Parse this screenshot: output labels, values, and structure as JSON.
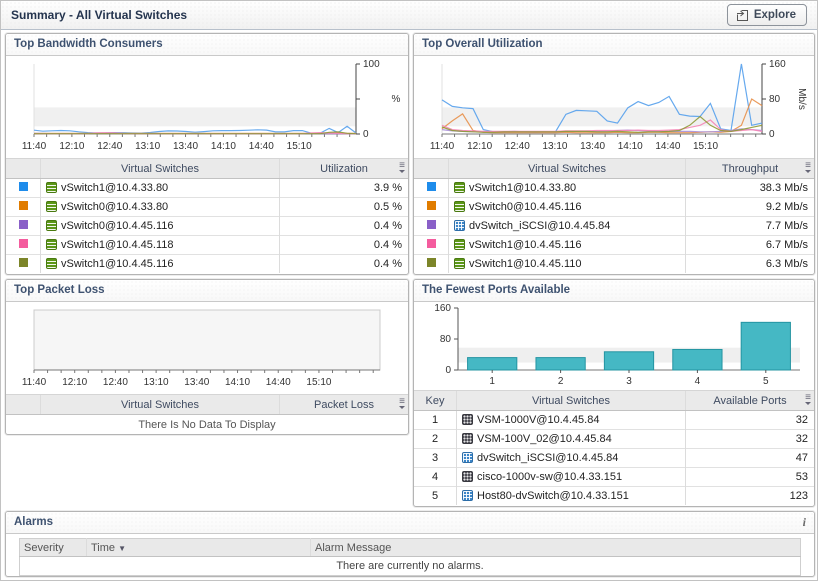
{
  "header": {
    "title": "Summary - All Virtual Switches",
    "explore_label": "Explore"
  },
  "panels": {
    "bandwidth": {
      "title": "Top Bandwidth Consumers",
      "table": {
        "col_name": "Virtual Switches",
        "col_value": "Utilization",
        "rows": [
          {
            "color": "#1e8ceb",
            "icon": "vswitch",
            "name": "vSwitch1@10.4.33.80",
            "value": "3.9 %"
          },
          {
            "color": "#e07c00",
            "icon": "vswitch",
            "name": "vSwitch0@10.4.33.80",
            "value": "0.5 %"
          },
          {
            "color": "#8a60c8",
            "icon": "vswitch",
            "name": "vSwitch0@10.4.45.116",
            "value": "0.4 %"
          },
          {
            "color": "#f45c9e",
            "icon": "vswitch",
            "name": "vSwitch1@10.4.45.118",
            "value": "0.4 %"
          },
          {
            "color": "#7c8529",
            "icon": "vswitch",
            "name": "vSwitch1@10.4.45.116",
            "value": "0.4 %"
          }
        ]
      },
      "chart_data": {
        "type": "line",
        "unit": "%",
        "unit_rotated": false,
        "x_labels": [
          "11:40",
          "12:10",
          "12:40",
          "13:10",
          "13:40",
          "14:10",
          "14:40",
          "15:10"
        ],
        "x_range_minutes": 255,
        "label_step_minutes": 30,
        "ylim": [
          0,
          100
        ],
        "yticks": [
          {
            "value": 100,
            "label": "100"
          },
          {
            "value": 50,
            "label": ""
          },
          {
            "value": 0,
            "label": "0"
          }
        ],
        "series": [
          {
            "name": "vSwitch1@10.4.33.80",
            "color": "#55a0ec",
            "values": [
              5.5,
              4,
              4.5,
              5,
              4.6,
              3.2,
              2,
              1.5,
              1.6,
              2,
              1.8,
              1.4,
              1.3,
              2.2,
              3.6,
              4.4,
              4.3,
              3.5,
              2.6,
              3.4,
              4.6,
              4.8,
              4.8,
              5,
              5.4,
              6,
              5.6,
              3,
              3,
              4.8,
              4.8,
              1.2,
              1.2,
              8,
              2,
              11,
              1.5
            ]
          },
          {
            "name": "vSwitch0@10.4.33.80",
            "color": "#e8904a",
            "values": [
              1,
              0.9,
              0.8,
              0.8,
              0.8,
              0.8,
              0.8,
              0.8,
              0.8,
              0.8,
              0.8,
              0.8,
              0.8,
              0.8,
              0.8,
              0.8,
              0.8,
              0.8,
              0.8,
              0.8,
              0.8,
              0.8,
              0.8,
              0.8,
              0.8,
              0.8,
              0.8,
              0.8,
              0.8,
              0.8,
              0.8,
              0.8,
              0.8,
              1,
              1.5,
              1,
              0.8
            ]
          },
          {
            "name": "vSwitch0@10.4.45.116",
            "color": "#a98fd8",
            "values": [
              0.8,
              0.7,
              0.6,
              0.6,
              0.6,
              0.6,
              0.6,
              0.6,
              0.6,
              0.6,
              0.6,
              0.6,
              0.6,
              0.6,
              0.6,
              0.6,
              0.6,
              0.6,
              0.6,
              0.6,
              0.6,
              0.6,
              0.6,
              0.6,
              0.6,
              0.6,
              0.6,
              0.6,
              0.6,
              0.6,
              0.6,
              0.6,
              0.6,
              0.6,
              0.6,
              0.6,
              0.6
            ]
          },
          {
            "name": "vSwitch1@10.4.45.118",
            "color": "#f585b6",
            "values": [
              0.6,
              0.6,
              0.6,
              0.6,
              0.6,
              0.6,
              0.6,
              1.6,
              1.8,
              1.6,
              0.7,
              0.6,
              0.6,
              0.6,
              0.6,
              0.6,
              0.6,
              0.6,
              0.6,
              0.6,
              0.6,
              0.6,
              0.6,
              0.6,
              0.6,
              0.6,
              0.6,
              0.6,
              0.6,
              0.6,
              0.6,
              1.5,
              2,
              1.5,
              0.8,
              0.6,
              0.6
            ]
          },
          {
            "name": "vSwitch1@10.4.45.116",
            "color": "#8e9a36",
            "values": [
              0.5,
              0.5,
              0.5,
              0.5,
              0.5,
              0.5,
              0.5,
              0.5,
              0.5,
              0.5,
              0.5,
              0.5,
              0.5,
              0.5,
              0.5,
              0.5,
              0.5,
              0.5,
              0.5,
              0.5,
              0.5,
              0.5,
              0.5,
              0.5,
              0.5,
              0.5,
              0.5,
              0.5,
              0.5,
              0.5,
              0.5,
              0.5,
              0.5,
              2.5,
              3,
              1,
              0.5
            ]
          }
        ]
      }
    },
    "utilization": {
      "title": "Top Overall Utilization",
      "table": {
        "col_name": "Virtual Switches",
        "col_value": "Throughput",
        "rows": [
          {
            "color": "#1e8ceb",
            "icon": "vswitch",
            "name": "vSwitch1@10.4.33.80",
            "value": "38.3 Mb/s"
          },
          {
            "color": "#e07c00",
            "icon": "vswitch",
            "name": "vSwitch0@10.4.45.116",
            "value": "9.2 Mb/s"
          },
          {
            "color": "#8a60c8",
            "icon": "dvswitch",
            "name": "dvSwitch_iSCSI@10.4.45.84",
            "value": "7.7 Mb/s"
          },
          {
            "color": "#f45c9e",
            "icon": "vswitch",
            "name": "vSwitch1@10.4.45.116",
            "value": "6.7 Mb/s"
          },
          {
            "color": "#7c8529",
            "icon": "vswitch",
            "name": "vSwitch1@10.4.45.110",
            "value": "6.3 Mb/s"
          }
        ]
      },
      "chart_data": {
        "type": "line",
        "unit": "Mb/s",
        "unit_rotated": true,
        "x_labels": [
          "11:40",
          "12:10",
          "12:40",
          "13:10",
          "13:40",
          "14:10",
          "14:40",
          "15:10"
        ],
        "x_range_minutes": 255,
        "label_step_minutes": 30,
        "ylim": [
          0,
          160
        ],
        "yticks": [
          {
            "value": 160,
            "label": "160"
          },
          {
            "value": 80,
            "label": "80"
          },
          {
            "value": 0,
            "label": "0"
          }
        ],
        "series": [
          {
            "name": "vSwitch1@10.4.33.80",
            "color": "#55a0ec",
            "values": [
              78,
              63,
              60,
              58,
              10,
              5,
              4,
              5,
              5,
              4,
              5,
              5,
              45,
              54,
              53,
              52,
              30,
              25,
              60,
              74,
              65,
              72,
              86,
              45,
              41,
              40,
              70,
              12,
              8,
              160,
              20,
              25
            ]
          },
          {
            "name": "vSwitch0@10.4.45.116",
            "color": "#e8904a",
            "values": [
              12,
              30,
              46,
              8,
              4,
              3,
              3,
              3,
              3,
              3,
              3,
              3,
              4,
              3,
              3,
              3,
              3,
              4,
              3,
              3,
              4,
              4,
              3,
              3,
              3,
              4,
              5,
              4,
              6,
              20,
              80,
              65
            ]
          },
          {
            "name": "dvSwitch_iSCSI@10.4.45.84",
            "color": "#a98fd8",
            "values": [
              10,
              7,
              6,
              5,
              5,
              5,
              5,
              6,
              5,
              5,
              5,
              5,
              6,
              6,
              6,
              6,
              7,
              8,
              9,
              8,
              7,
              6,
              6,
              6,
              6,
              5,
              5,
              6,
              8,
              12,
              10,
              8
            ]
          },
          {
            "name": "vSwitch1@10.4.45.116",
            "color": "#f585b6",
            "values": [
              20,
              10,
              8,
              7,
              6,
              6,
              6,
              6,
              6,
              6,
              6,
              6,
              7,
              7,
              7,
              8,
              8,
              8,
              8,
              9,
              8,
              8,
              9,
              10,
              15,
              20,
              32,
              10,
              6,
              8,
              10,
              6
            ]
          },
          {
            "name": "vSwitch1@10.4.45.110",
            "color": "#8e9a36",
            "values": [
              16,
              8,
              6,
              5,
              4,
              4,
              5,
              5,
              5,
              5,
              5,
              5,
              6,
              6,
              6,
              5,
              5,
              6,
              5,
              4,
              5,
              5,
              6,
              8,
              20,
              40,
              20,
              8,
              6,
              10,
              15,
              20
            ]
          }
        ]
      }
    },
    "packetloss": {
      "title": "Top Packet Loss",
      "table": {
        "col_name": "Virtual Switches",
        "col_value": "Packet Loss",
        "empty": "There Is No Data To Display"
      },
      "chart_data": {
        "type": "line",
        "plot_fill": "#f6f6f6",
        "x_labels": [
          "11:40",
          "12:10",
          "12:40",
          "13:10",
          "13:40",
          "14:10",
          "14:40",
          "15:10"
        ],
        "x_range_minutes": 255,
        "label_step_minutes": 30,
        "ylim": [
          0,
          1
        ],
        "yticks": [],
        "series": []
      }
    },
    "ports": {
      "title": "The Fewest Ports Available",
      "table": {
        "col_key": "Key",
        "col_name": "Virtual Switches",
        "col_value": "Available Ports",
        "rows": [
          {
            "key": "1",
            "icon": "vsm",
            "name": "VSM-1000V@10.4.45.84",
            "value": "32"
          },
          {
            "key": "2",
            "icon": "vsm",
            "name": "VSM-100V_02@10.4.45.84",
            "value": "32"
          },
          {
            "key": "3",
            "icon": "dvswitch",
            "name": "dvSwitch_iSCSI@10.4.45.84",
            "value": "47"
          },
          {
            "key": "4",
            "icon": "vsm",
            "name": "cisco-1000v-sw@10.4.33.151",
            "value": "53"
          },
          {
            "key": "5",
            "icon": "dvswitch",
            "name": "Host80-dvSwitch@10.4.33.151",
            "value": "123"
          }
        ]
      },
      "chart_data": {
        "type": "bar",
        "categories": [
          "1",
          "2",
          "3",
          "4",
          "5"
        ],
        "values": [
          32,
          32,
          47,
          53,
          123
        ],
        "ylim": [
          0,
          160
        ],
        "yticks": [
          {
            "value": 160,
            "label": "160"
          },
          {
            "value": 80,
            "label": "80"
          },
          {
            "value": 0,
            "label": "0"
          }
        ],
        "bar_color": "#45b8c4",
        "bar_border": "#2494a2"
      }
    }
  },
  "alarms": {
    "title": "Alarms",
    "info_icon": "i",
    "sort_icon": "▼",
    "headers": {
      "severity": "Severity",
      "time": "Time",
      "message": "Alarm Message"
    },
    "empty": "There are currently no alarms."
  },
  "icons": {
    "customizer": "≡"
  }
}
